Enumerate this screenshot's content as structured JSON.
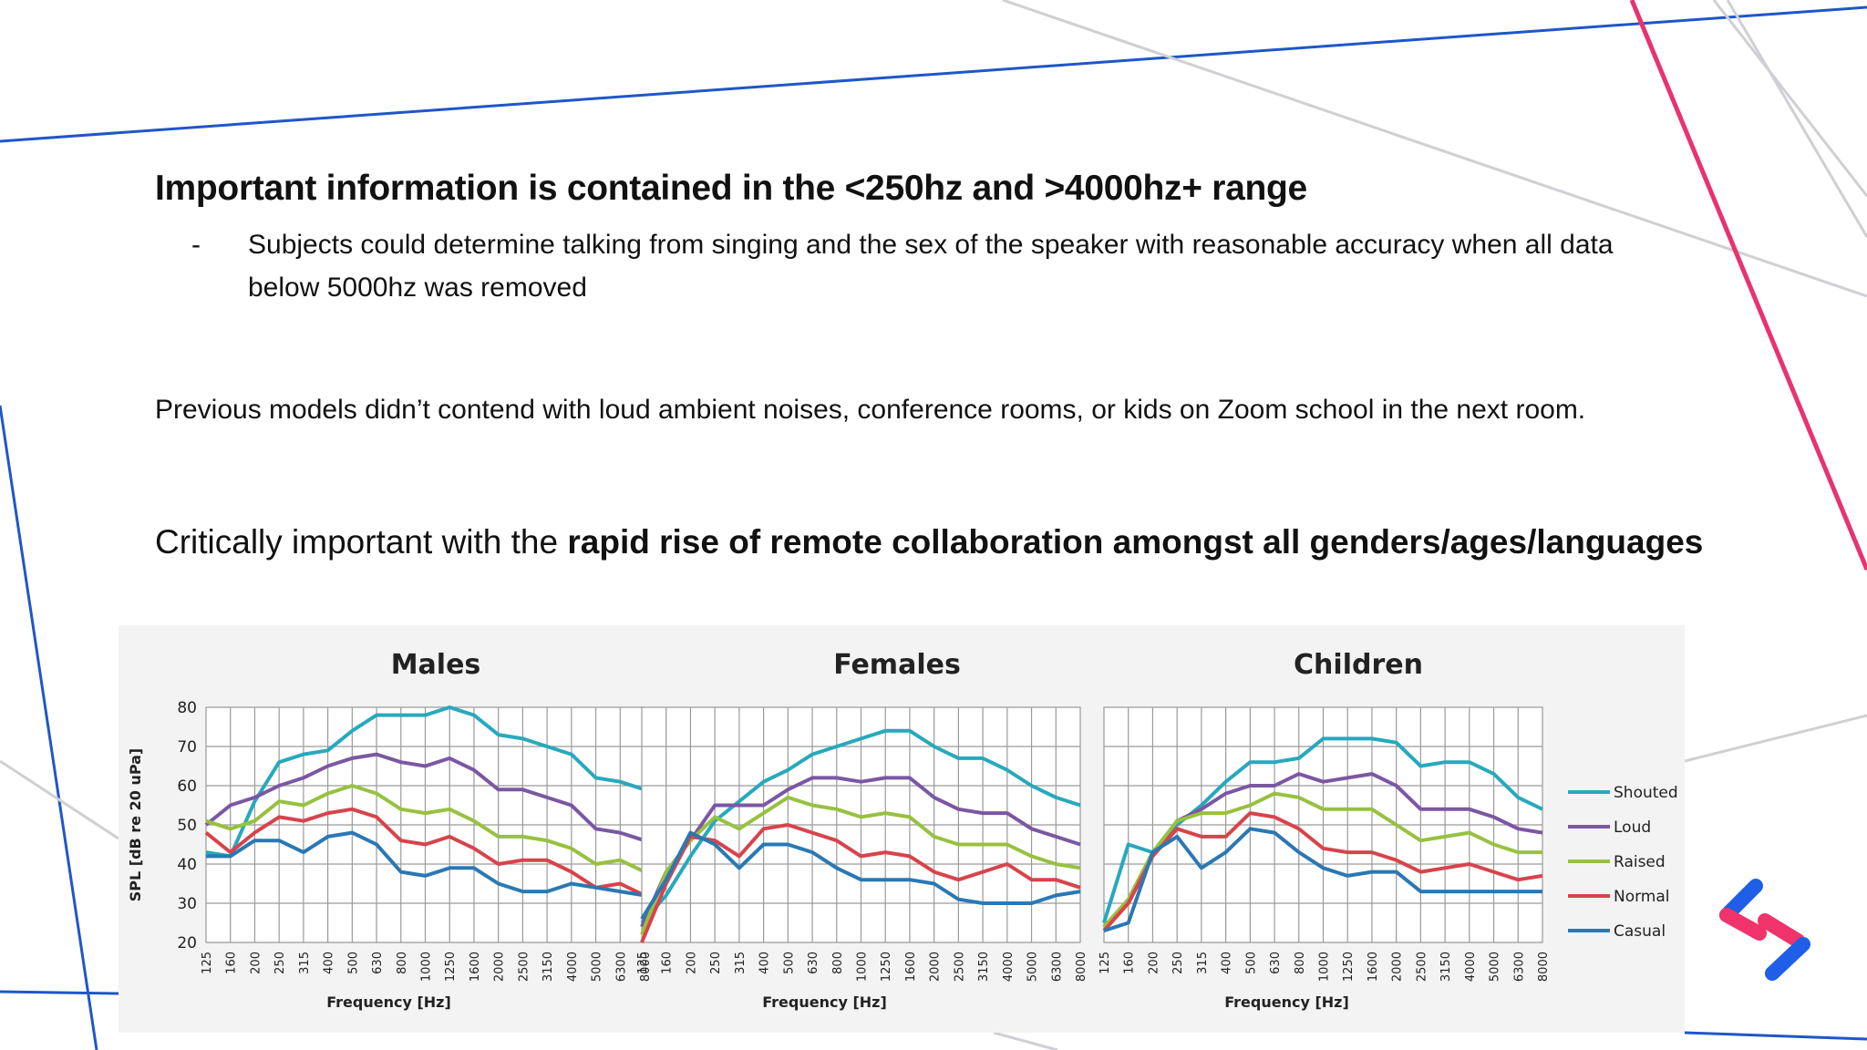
{
  "slide": {
    "heading": "Important information is contained in the <250hz and >4000hz+ range",
    "bullet_marker": "-",
    "bullet_text": "Subjects could determine talking from singing and the sex of the speaker with reasonable accuracy when all data below 5000hz was removed",
    "paragraph": "Previous models didn’t contend with loud ambient noises, conference rooms, or kids on Zoom school in the next room.",
    "closing_plain": "Critically important with the ",
    "closing_bold": "rapid rise of remote collaboration amongst all genders/ages/languages"
  },
  "colors": {
    "frame_blue": "#1f56c9",
    "frame_pink": "#e8336e",
    "frame_gray": "#cfcfd4",
    "logo_blue": "#1f5ee6",
    "logo_pink": "#f0336b"
  },
  "chart_data": {
    "type": "line",
    "ylabel": "SPL [dB re 20 uPa]",
    "xlabel": "Frequency [Hz]",
    "ylim": [
      20,
      80
    ],
    "yticks": [
      20,
      30,
      40,
      50,
      60,
      70,
      80
    ],
    "grid": true,
    "legend_position": "right",
    "categories": [
      "125",
      "160",
      "200",
      "250",
      "315",
      "400",
      "500",
      "630",
      "800",
      "1000",
      "1250",
      "1600",
      "2000",
      "2500",
      "3150",
      "4000",
      "5000",
      "6300",
      "8000"
    ],
    "series_styles": [
      {
        "name": "Shouted",
        "color": "#27a9bd"
      },
      {
        "name": "Loud",
        "color": "#7b57a3"
      },
      {
        "name": "Raised",
        "color": "#97c13f"
      },
      {
        "name": "Normal",
        "color": "#d8434a"
      },
      {
        "name": "Casual",
        "color": "#2a78b4"
      }
    ],
    "panels": [
      {
        "title": "Males",
        "series": [
          {
            "name": "Shouted",
            "values": [
              43,
              42,
              56,
              66,
              68,
              69,
              74,
              78,
              78,
              78,
              80,
              78,
              73,
              72,
              70,
              68,
              62,
              61,
              59
            ]
          },
          {
            "name": "Loud",
            "values": [
              50,
              55,
              57,
              60,
              62,
              65,
              67,
              68,
              66,
              65,
              67,
              64,
              59,
              59,
              57,
              55,
              49,
              48,
              46
            ]
          },
          {
            "name": "Raised",
            "values": [
              51,
              49,
              51,
              56,
              55,
              58,
              60,
              58,
              54,
              53,
              54,
              51,
              47,
              47,
              46,
              44,
              40,
              41,
              38
            ]
          },
          {
            "name": "Normal",
            "values": [
              48,
              43,
              48,
              52,
              51,
              53,
              54,
              52,
              46,
              45,
              47,
              44,
              40,
              41,
              41,
              38,
              34,
              35,
              32
            ]
          },
          {
            "name": "Casual",
            "values": [
              42,
              42,
              46,
              46,
              43,
              47,
              48,
              45,
              38,
              37,
              39,
              39,
              35,
              33,
              33,
              35,
              34,
              33,
              32
            ]
          }
        ]
      },
      {
        "title": "Females",
        "series": [
          {
            "name": "Shouted",
            "values": [
              25,
              32,
              42,
              51,
              56,
              61,
              64,
              68,
              70,
              72,
              74,
              74,
              70,
              67,
              67,
              64,
              60,
              57,
              55
            ]
          },
          {
            "name": "Loud",
            "values": [
              24,
              38,
              46,
              55,
              55,
              55,
              59,
              62,
              62,
              61,
              62,
              62,
              57,
              54,
              53,
              53,
              49,
              47,
              45
            ]
          },
          {
            "name": "Raised",
            "values": [
              22,
              38,
              46,
              52,
              49,
              53,
              57,
              55,
              54,
              52,
              53,
              52,
              47,
              45,
              45,
              45,
              42,
              40,
              39
            ]
          },
          {
            "name": "Normal",
            "values": [
              20,
              35,
              47,
              46,
              42,
              49,
              50,
              48,
              46,
              42,
              43,
              42,
              38,
              36,
              38,
              40,
              36,
              36,
              34
            ]
          },
          {
            "name": "Casual",
            "values": [
              26,
              36,
              48,
              45,
              39,
              45,
              45,
              43,
              39,
              36,
              36,
              36,
              35,
              31,
              30,
              30,
              30,
              32,
              33
            ]
          }
        ]
      },
      {
        "title": "Children",
        "series": [
          {
            "name": "Shouted",
            "values": [
              25,
              45,
              43,
              50,
              55,
              61,
              66,
              66,
              67,
              72,
              72,
              72,
              71,
              65,
              66,
              66,
              63,
              57,
              54
            ]
          },
          {
            "name": "Loud",
            "values": [
              24,
              30,
              42,
              51,
              54,
              58,
              60,
              60,
              63,
              61,
              62,
              63,
              60,
              54,
              54,
              54,
              52,
              49,
              48
            ]
          },
          {
            "name": "Raised",
            "values": [
              24,
              31,
              43,
              51,
              53,
              53,
              55,
              58,
              57,
              54,
              54,
              54,
              50,
              46,
              47,
              48,
              45,
              43,
              43
            ]
          },
          {
            "name": "Normal",
            "values": [
              23,
              30,
              42,
              49,
              47,
              47,
              53,
              52,
              49,
              44,
              43,
              43,
              41,
              38,
              39,
              40,
              38,
              36,
              37
            ]
          },
          {
            "name": "Casual",
            "values": [
              23,
              25,
              43,
              47,
              39,
              43,
              49,
              48,
              43,
              39,
              37,
              38,
              38,
              33,
              33,
              33,
              33,
              33,
              33
            ]
          }
        ]
      }
    ]
  }
}
